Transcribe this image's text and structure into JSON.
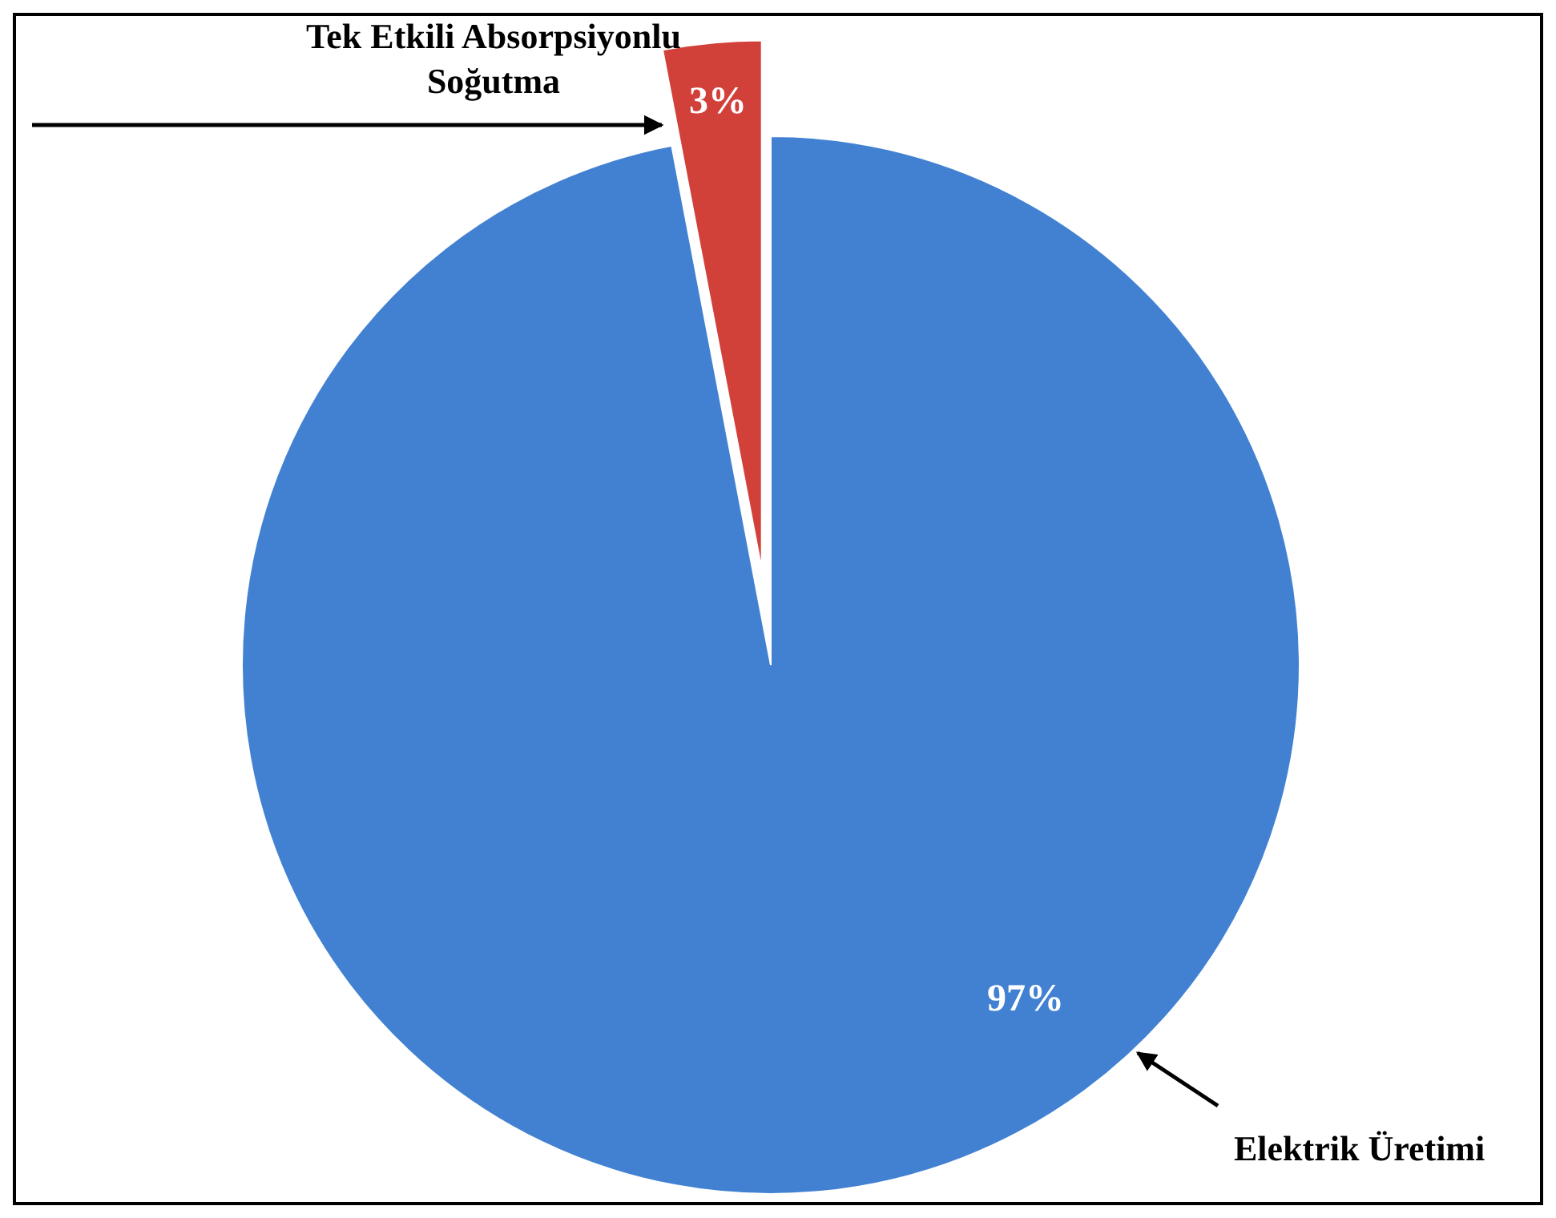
{
  "chart_data": {
    "type": "pie",
    "categories": [
      "Elektrik Üretimi",
      "Tek Etkili Absorpsiyonlu Soğutma"
    ],
    "values": [
      97,
      3
    ],
    "colors": [
      "#4281d2",
      "#d2403a"
    ],
    "value_labels": [
      "97%",
      "3%"
    ],
    "legend": false
  }
}
